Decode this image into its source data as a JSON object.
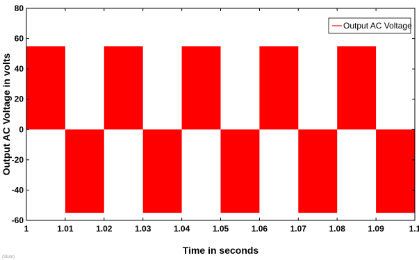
{
  "chart_data": {
    "type": "line",
    "title": "",
    "xlabel": "Time in seconds",
    "ylabel": "Output AC Voltage in volts",
    "xlim": [
      1,
      1.1
    ],
    "ylim": [
      -60,
      80
    ],
    "x_ticks": [
      1,
      1.01,
      1.02,
      1.03,
      1.04,
      1.05,
      1.06,
      1.07,
      1.08,
      1.09,
      1.1
    ],
    "x_tick_labels": [
      "1",
      "1.01",
      "1.02",
      "1.03",
      "1.04",
      "1.05",
      "1.06",
      "1.07",
      "1.08",
      "1.09",
      "1.1"
    ],
    "y_ticks": [
      -60,
      -40,
      -20,
      0,
      20,
      40,
      60,
      80
    ],
    "y_tick_labels": [
      "-60",
      "-40",
      "-20",
      "0",
      "20",
      "40",
      "60",
      "80"
    ],
    "legend": {
      "position": "top-right"
    },
    "grid": false,
    "series": [
      {
        "name": "Output AC Voltage",
        "color": "#ff0000",
        "description_segments": [
          {
            "x_start": 1.0,
            "x_end": 1.01,
            "level": 55
          },
          {
            "x_start": 1.01,
            "x_end": 1.02,
            "level": -55
          },
          {
            "x_start": 1.02,
            "x_end": 1.03,
            "level": 55
          },
          {
            "x_start": 1.03,
            "x_end": 1.04,
            "level": -55
          },
          {
            "x_start": 1.04,
            "x_end": 1.05,
            "level": 55
          },
          {
            "x_start": 1.05,
            "x_end": 1.06,
            "level": -55
          },
          {
            "x_start": 1.06,
            "x_end": 1.07,
            "level": 55
          },
          {
            "x_start": 1.07,
            "x_end": 1.08,
            "level": -55
          },
          {
            "x_start": 1.08,
            "x_end": 1.09,
            "level": 55
          },
          {
            "x_start": 1.09,
            "x_end": 1.1,
            "level": -55
          }
        ]
      }
    ]
  },
  "corner_note": "(Stum)"
}
